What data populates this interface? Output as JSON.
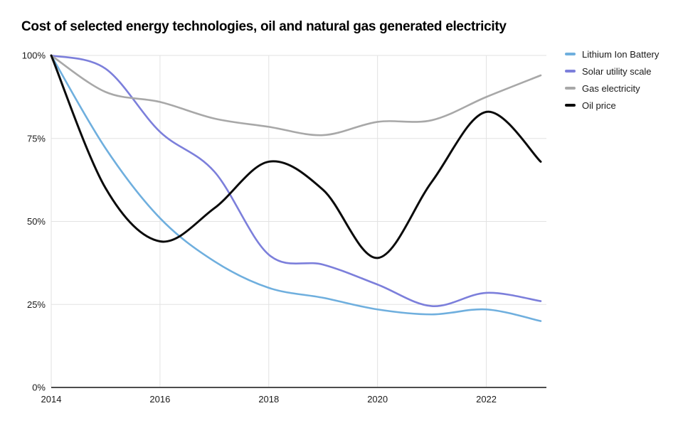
{
  "title": "Cost of selected energy technologies, oil and natural gas generated electricity",
  "chart_data": {
    "type": "line",
    "x": [
      2014,
      2015,
      2016,
      2017,
      2018,
      2019,
      2020,
      2021,
      2022,
      2023
    ],
    "series": [
      {
        "name": "Lithium Ion Battery",
        "color": "#6FAFDE",
        "width": 2.6,
        "values": [
          100,
          72,
          51,
          38,
          30,
          27,
          23.5,
          22,
          23.5,
          20
        ]
      },
      {
        "name": "Solar utility scale",
        "color": "#7C7FDB",
        "width": 2.6,
        "values": [
          100,
          96,
          77,
          65,
          40,
          37,
          31,
          24.5,
          28.5,
          26
        ]
      },
      {
        "name": "Gas electricity",
        "color": "#A8A8A8",
        "width": 2.6,
        "values": [
          100,
          89,
          86,
          81,
          78.5,
          76,
          80,
          80.5,
          87.5,
          94
        ]
      },
      {
        "name": "Oil price",
        "color": "#0B0B0B",
        "width": 3,
        "values": [
          100,
          60,
          44,
          54,
          68,
          59.5,
          39,
          62,
          83,
          68
        ]
      }
    ],
    "xlabel": "",
    "ylabel": "",
    "xlim": [
      2014,
      2023
    ],
    "ylim": [
      0,
      100
    ],
    "y_ticks": [
      0,
      25,
      50,
      75,
      100
    ],
    "y_tick_labels": [
      "0%",
      "25%",
      "50%",
      "75%",
      "100%"
    ],
    "x_tick_years": [
      2014,
      2016,
      2018,
      2020,
      2022
    ],
    "grid": true,
    "curve": "smooth-spline",
    "legend_position": "top-right"
  },
  "colors": {
    "background": "#FFFFFF",
    "gridline": "#E2E2E2",
    "axis_line": "#4D4D4D",
    "tick_text": "#1A1A1A",
    "title_text": "#000000"
  }
}
